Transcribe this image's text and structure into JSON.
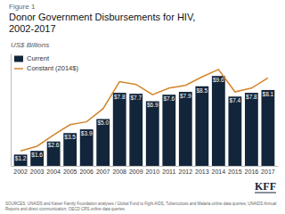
{
  "chart_data": {
    "type": "bar",
    "title": "Donor Government Disbursements for HIV,\n2002-2017",
    "subtitle": "Figure 1",
    "y_label": "US$ Billions",
    "categories": [
      "2002",
      "2003",
      "2004",
      "2005",
      "2006",
      "2007",
      "2008",
      "2009",
      "2010",
      "2011",
      "2012",
      "2013",
      "2014",
      "2015",
      "2016",
      "2017"
    ],
    "series": [
      {
        "name": "Current",
        "type": "bar",
        "color": "#12253a",
        "data_labels": true,
        "values": [
          1.2,
          1.6,
          2.6,
          3.5,
          3.9,
          5.0,
          7.8,
          7.7,
          6.9,
          7.6,
          7.9,
          8.5,
          9.6,
          7.4,
          7.8,
          8.1
        ],
        "value_labels": [
          "$1.2",
          "$1.6",
          "$2.6",
          "$3.5",
          "$3.9",
          "$5.0",
          "$7.8",
          "$7.7",
          "$6.9",
          "$7.6",
          "$7.9",
          "$8.5",
          "$9.6",
          "$7.4",
          "$7.8",
          "$8.1"
        ]
      },
      {
        "name": "Constant (2014$)",
        "type": "line",
        "color": "#d4852a",
        "values": [
          1.6,
          2.1,
          3.3,
          4.4,
          4.7,
          6.1,
          9.0,
          8.7,
          7.6,
          8.3,
          8.6,
          9.5,
          10.3,
          7.9,
          8.3,
          9.4
        ]
      }
    ],
    "ylim": [
      0,
      12
    ],
    "yticks": [],
    "tick_labels": "x",
    "grid": false,
    "legend": "upper-left",
    "annotations": [
      "SOURCES: UNAIDS and Kaiser Family Foundation analyses / Global Fund to Fight AIDS, Tuberculosis and Malaria online data queries; UNAIDS Annual\nReports and direct communication; OECD CRS online data queries.",
      "KFF"
    ]
  }
}
